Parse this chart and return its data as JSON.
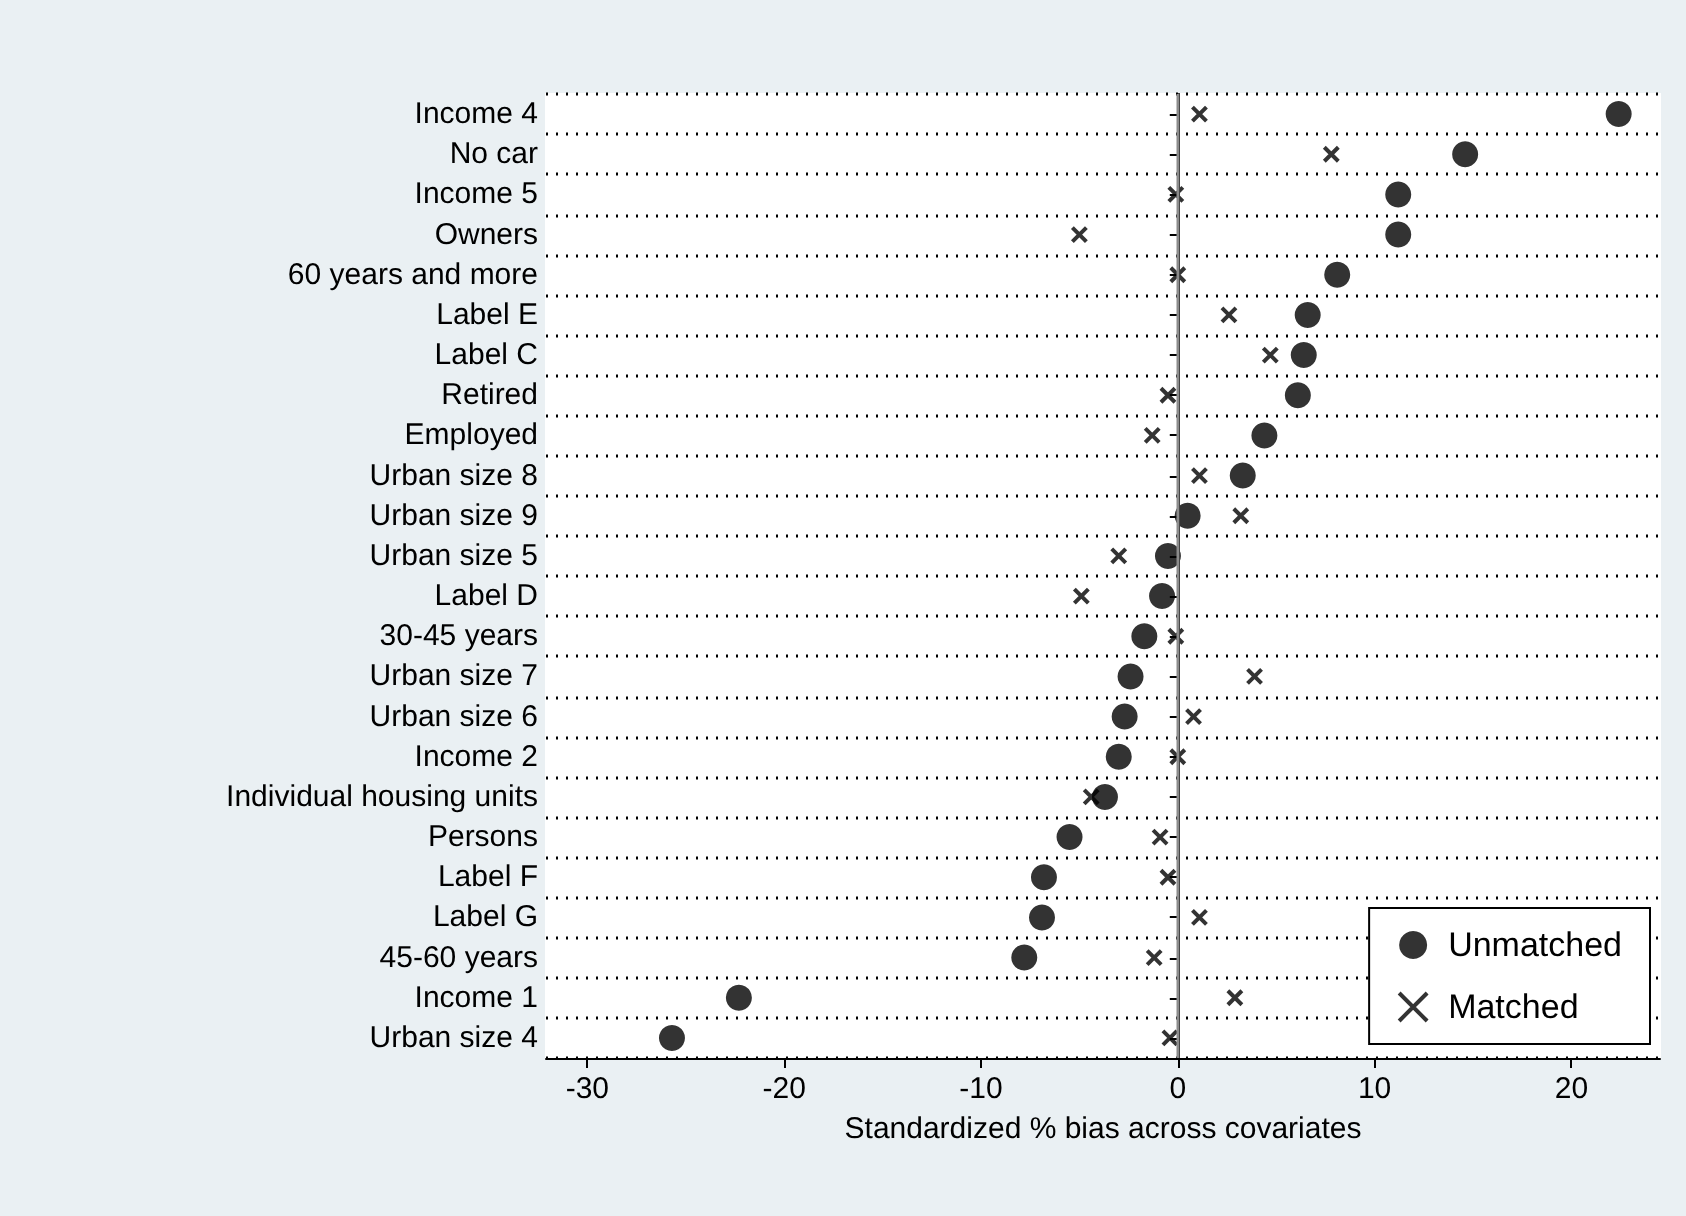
{
  "chart_data": {
    "type": "scatter",
    "orientation": "horizontal",
    "xlabel": "Standardized % bias across covariates",
    "categories": [
      "Income 4",
      "No car",
      "Income 5",
      "Owners",
      "60 years and more",
      "Label E",
      "Label C",
      "Retired",
      "Employed",
      "Urban size 8",
      "Urban size 9",
      "Urban size 5",
      "Label D",
      "30-45 years",
      "Urban size 7",
      "Urban size 6",
      "Income 2",
      "Individual housing units",
      "Persons",
      "Label F",
      "Label G",
      "45-60 years",
      "Income 1",
      "Urban size 4"
    ],
    "series": [
      {
        "name": "Unmatched",
        "color": "#000000",
        "marker": "circle",
        "values": [
          22.4,
          14.6,
          11.2,
          11.2,
          8.1,
          6.6,
          6.4,
          6.1,
          4.4,
          3.3,
          0.5,
          -0.5,
          -0.8,
          -1.7,
          -2.4,
          -2.7,
          -3.0,
          -3.7,
          -5.5,
          -6.8,
          -6.9,
          -7.8,
          -22.3,
          -25.7
        ]
      },
      {
        "name": "Matched",
        "color": "#000000",
        "marker": "cross",
        "values": [
          1.1,
          7.8,
          -0.1,
          -5.0,
          0.0,
          2.6,
          4.7,
          -0.5,
          -1.3,
          1.1,
          3.2,
          -3.0,
          -4.9,
          -0.1,
          3.9,
          0.8,
          0.0,
          -4.4,
          -0.9,
          -0.5,
          1.1,
          -1.2,
          2.9,
          -0.4
        ]
      }
    ],
    "xlim": [
      -32.1,
      24.5
    ],
    "xticks": [
      -30,
      -20,
      -10,
      0,
      10,
      20
    ],
    "ref_lines": [
      {
        "axis": "x",
        "value": 0,
        "color": "#8c8c8c"
      }
    ],
    "grid": "y",
    "legend": "bottom right"
  }
}
